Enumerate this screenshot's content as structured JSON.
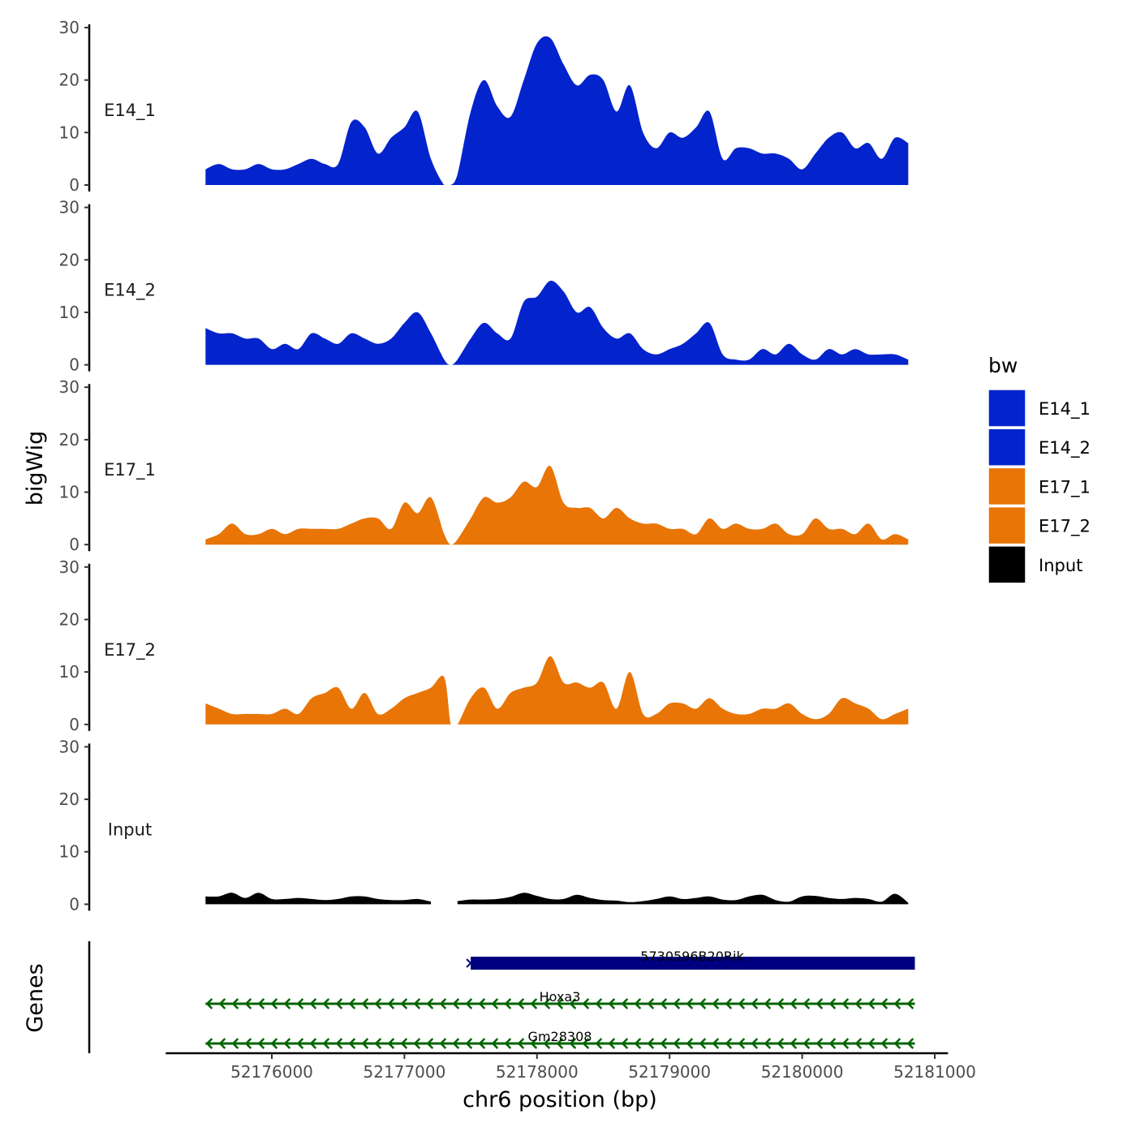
{
  "chart_data": {
    "type": "area",
    "xlabel": "chr6 position (bp)",
    "ylabel": "bigWig",
    "genes_label": "Genes",
    "xlim": [
      52175200,
      52181100
    ],
    "ylim": [
      0,
      30
    ],
    "x_ticks": [
      {
        "value": 52176000,
        "label": "52176000"
      },
      {
        "value": 52177000,
        "label": "52177000"
      },
      {
        "value": 52178000,
        "label": "52178000"
      },
      {
        "value": 52179000,
        "label": "52179000"
      },
      {
        "value": 52180000,
        "label": "52180000"
      },
      {
        "value": 52181000,
        "label": "52181000"
      }
    ],
    "y_ticks": [
      {
        "value": 0,
        "label": "0"
      },
      {
        "value": 10,
        "label": "10"
      },
      {
        "value": 20,
        "label": "20"
      },
      {
        "value": 30,
        "label": "30"
      }
    ],
    "legend": {
      "title": "bw",
      "position": "right",
      "items": [
        {
          "name": "E14_1",
          "color": "#0323CC"
        },
        {
          "name": "E14_2",
          "color": "#0323CC"
        },
        {
          "name": "E17_1",
          "color": "#E87506"
        },
        {
          "name": "E17_2",
          "color": "#E87506"
        },
        {
          "name": "Input",
          "color": "#000000"
        }
      ]
    },
    "tracks": [
      {
        "name": "E14_1",
        "color": "#0323CC",
        "x": [
          52175500,
          52175600,
          52175700,
          52175800,
          52175900,
          52176000,
          52176100,
          52176200,
          52176300,
          52176400,
          52176500,
          52176600,
          52176700,
          52176800,
          52176900,
          52177000,
          52177100,
          52177200,
          52177300,
          52177350,
          52177400,
          52177500,
          52177600,
          52177700,
          52177800,
          52177900,
          52178000,
          52178100,
          52178200,
          52178300,
          52178400,
          52178500,
          52178600,
          52178700,
          52178800,
          52178900,
          52179000,
          52179100,
          52179200,
          52179300,
          52179400,
          52179500,
          52179600,
          52179700,
          52179800,
          52179900,
          52180000,
          52180100,
          52180200,
          52180300,
          52180400,
          52180500,
          52180600,
          52180700,
          52180800
        ],
        "y": [
          3,
          4,
          3,
          3,
          4,
          3,
          3,
          4,
          5,
          4,
          4,
          12,
          11,
          6,
          9,
          11,
          14,
          5,
          0,
          0,
          2,
          14,
          20,
          15,
          13,
          20,
          27,
          28,
          23,
          19,
          21,
          20,
          14,
          19,
          10,
          7,
          10,
          9,
          11,
          14,
          5,
          7,
          7,
          6,
          6,
          5,
          3,
          6,
          9,
          10,
          7,
          8,
          5,
          9,
          8
        ]
      },
      {
        "name": "E14_2",
        "color": "#0323CC",
        "x": [
          52175500,
          52175600,
          52175700,
          52175800,
          52175900,
          52176000,
          52176100,
          52176200,
          52176300,
          52176400,
          52176500,
          52176600,
          52176700,
          52176800,
          52176900,
          52177000,
          52177100,
          52177200,
          52177300,
          52177350,
          52177400,
          52177500,
          52177600,
          52177700,
          52177800,
          52177900,
          52178000,
          52178100,
          52178200,
          52178300,
          52178400,
          52178500,
          52178600,
          52178700,
          52178800,
          52178900,
          52179000,
          52179100,
          52179200,
          52179300,
          52179400,
          52179500,
          52179600,
          52179700,
          52179800,
          52179900,
          52180000,
          52180100,
          52180200,
          52180300,
          52180400,
          52180500,
          52180600,
          52180700,
          52180800
        ],
        "y": [
          7,
          6,
          6,
          5,
          5,
          3,
          4,
          3,
          6,
          5,
          4,
          6,
          5,
          4,
          5,
          8,
          10,
          6,
          1,
          0,
          1,
          5,
          8,
          6,
          5,
          12,
          13,
          16,
          14,
          10,
          11,
          7,
          5,
          6,
          3,
          2,
          3,
          4,
          6,
          8,
          2,
          1,
          1,
          3,
          2,
          4,
          2,
          1,
          3,
          2,
          3,
          2,
          2,
          2,
          1
        ]
      },
      {
        "name": "E17_1",
        "color": "#E87506",
        "x": [
          52175500,
          52175600,
          52175700,
          52175800,
          52175900,
          52176000,
          52176100,
          52176200,
          52176300,
          52176400,
          52176500,
          52176600,
          52176700,
          52176800,
          52176900,
          52177000,
          52177100,
          52177200,
          52177300,
          52177350,
          52177400,
          52177500,
          52177600,
          52177700,
          52177800,
          52177900,
          52178000,
          52178100,
          52178200,
          52178300,
          52178400,
          52178500,
          52178600,
          52178700,
          52178800,
          52178900,
          52179000,
          52179100,
          52179200,
          52179300,
          52179400,
          52179500,
          52179600,
          52179700,
          52179800,
          52179900,
          52180000,
          52180100,
          52180200,
          52180300,
          52180400,
          52180500,
          52180600,
          52180700,
          52180800
        ],
        "y": [
          1,
          2,
          4,
          2,
          2,
          3,
          2,
          3,
          3,
          3,
          3,
          4,
          5,
          5,
          3,
          8,
          6,
          9,
          2,
          0,
          1,
          5,
          9,
          8,
          9,
          12,
          11,
          15,
          8,
          7,
          7,
          5,
          7,
          5,
          4,
          4,
          3,
          3,
          2,
          5,
          3,
          4,
          3,
          3,
          4,
          2,
          2,
          5,
          3,
          3,
          2,
          4,
          1,
          2,
          1
        ]
      },
      {
        "name": "E17_2",
        "color": "#E87506",
        "x": [
          52175500,
          52175600,
          52175700,
          52175800,
          52175900,
          52176000,
          52176100,
          52176200,
          52176300,
          52176400,
          52176500,
          52176600,
          52176700,
          52176800,
          52176900,
          52177000,
          52177100,
          52177200,
          52177300,
          52177350,
          52177400,
          52177500,
          52177600,
          52177700,
          52177800,
          52177900,
          52178000,
          52178100,
          52178200,
          52178300,
          52178400,
          52178500,
          52178600,
          52178700,
          52178800,
          52178900,
          52179000,
          52179100,
          52179200,
          52179300,
          52179400,
          52179500,
          52179600,
          52179700,
          52179800,
          52179900,
          52180000,
          52180100,
          52180200,
          52180300,
          52180400,
          52180500,
          52180600,
          52180700,
          52180800
        ],
        "y": [
          4,
          3,
          2,
          2,
          2,
          2,
          3,
          2,
          5,
          6,
          7,
          3,
          6,
          2,
          3,
          5,
          6,
          7,
          9,
          0,
          0,
          5,
          7,
          3,
          6,
          7,
          8,
          13,
          8,
          8,
          7,
          8,
          3,
          10,
          2,
          2,
          4,
          4,
          3,
          5,
          3,
          2,
          2,
          3,
          3,
          4,
          2,
          1,
          2,
          5,
          4,
          3,
          1,
          2,
          3
        ]
      },
      {
        "name": "Input",
        "color": "#000000",
        "x": [
          52175500,
          52175600,
          52175700,
          52175800,
          52175900,
          52176000,
          52176100,
          52176200,
          52176300,
          52176400,
          52176500,
          52176600,
          52176700,
          52176800,
          52176900,
          52177000,
          52177100,
          52177200,
          52177300,
          52177350,
          52177400,
          52177500,
          52177600,
          52177700,
          52177800,
          52177900,
          52178000,
          52178100,
          52178200,
          52178300,
          52178400,
          52178500,
          52178600,
          52178700,
          52178800,
          52178900,
          52179000,
          52179100,
          52179200,
          52179300,
          52179400,
          52179500,
          52179600,
          52179700,
          52179800,
          52179900,
          52180000,
          52180100,
          52180200,
          52180300,
          52180400,
          52180500,
          52180600,
          52180700,
          52180800
        ],
        "y": [
          1.5,
          1.5,
          2.2,
          1.2,
          2.2,
          1.0,
          1.0,
          1.2,
          1.0,
          0.8,
          1.0,
          1.5,
          1.5,
          1.0,
          0.8,
          0.8,
          1.0,
          0.5,
          null,
          null,
          0.6,
          0.9,
          0.9,
          1.0,
          1.4,
          2.2,
          1.6,
          1.0,
          1.0,
          1.8,
          1.2,
          0.8,
          0.7,
          0.4,
          0.6,
          1.0,
          1.5,
          1.0,
          1.2,
          1.5,
          0.9,
          0.8,
          1.5,
          1.8,
          0.8,
          0.5,
          1.5,
          1.6,
          1.2,
          1.0,
          1.2,
          1.0,
          0.5,
          2.0,
          0.3
        ]
      }
    ],
    "genes": [
      {
        "name": "5730596B20Rik",
        "start": 52177500,
        "end": 52180850,
        "strand": "+",
        "color": "#000080",
        "style": "thick"
      },
      {
        "name": "Hoxa3",
        "start": 52175500,
        "end": 52180850,
        "strand": "-",
        "color": "#006400",
        "style": "thin"
      },
      {
        "name": "Gm28308",
        "start": 52175500,
        "end": 52180850,
        "strand": "-",
        "color": "#006400",
        "style": "thin"
      }
    ]
  }
}
